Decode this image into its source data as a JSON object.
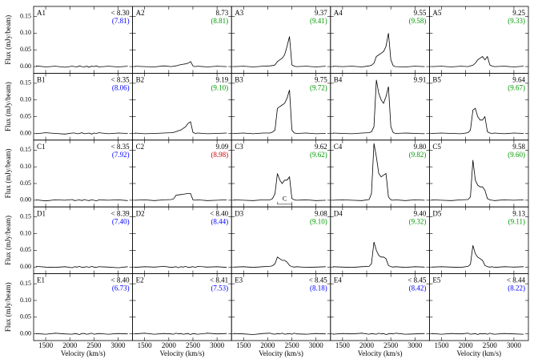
{
  "chart_data": {
    "type": "line",
    "xlabel": "Velocity (km/s)",
    "ylabel": "Flux (mJy/beam)",
    "x": [
      1300,
      1500,
      1700,
      1900,
      2050,
      2100,
      2150,
      2200,
      2250,
      2300,
      2350,
      2400,
      2450,
      2500,
      2550,
      2600,
      2800,
      3000,
      3200
    ],
    "xlim": [
      1250,
      3300
    ],
    "xticks": [
      1500,
      2000,
      2500,
      3000
    ],
    "ylim": [
      -0.02,
      0.18
    ],
    "yticks": [
      {
        "value": 0,
        "label": "0.00"
      },
      {
        "value": 0.05,
        "label": "0.05"
      },
      {
        "value": 0.1,
        "label": "0.10"
      },
      {
        "value": 0.15,
        "label": "0.15"
      }
    ],
    "color": "#000000",
    "panels": [
      {
        "title": "A1",
        "label": "< 8.30",
        "sub_label": "(7.81)",
        "sub_color": "#0000ff",
        "values": [
          0.002,
          -0.001,
          0.001,
          -0.002,
          0.001,
          0,
          -0.001,
          0.002,
          0,
          -0.001,
          0.001,
          -0.002,
          0.001,
          0,
          0.002,
          -0.001,
          0.001,
          -0.001,
          0.001
        ]
      },
      {
        "title": "A2",
        "label": "8.73",
        "sub_label": "(8.81)",
        "sub_color": "#009900",
        "values": [
          0.001,
          0,
          -0.001,
          0.002,
          0,
          0.001,
          0.002,
          0.004,
          0.006,
          0.007,
          0.008,
          0.01,
          0.015,
          0.002,
          0,
          0.001,
          -0.001,
          0.001,
          0
        ]
      },
      {
        "title": "A3",
        "label": "9.37",
        "sub_label": "(9.41)",
        "sub_color": "#009900",
        "values": [
          0,
          0.001,
          -0.001,
          0.001,
          0.002,
          0.003,
          0.005,
          0.015,
          0.02,
          0.025,
          0.035,
          0.06,
          0.09,
          0.005,
          0.001,
          0,
          0.001,
          -0.001,
          0.001
        ]
      },
      {
        "title": "A4",
        "label": "9.55",
        "sub_label": "(9.58)",
        "sub_color": "#009900",
        "values": [
          0.001,
          0,
          0.001,
          -0.001,
          0.002,
          0.004,
          0.01,
          0.03,
          0.035,
          0.04,
          0.045,
          0.06,
          0.1,
          0.02,
          0.002,
          0,
          -0.001,
          0.001,
          0
        ]
      },
      {
        "title": "A5",
        "label": "9.25",
        "sub_label": "(9.33)",
        "sub_color": "#009900",
        "values": [
          0,
          0.001,
          -0.001,
          0.001,
          0,
          0.002,
          0.004,
          0.01,
          0.02,
          0.025,
          0.03,
          0.02,
          0.03,
          0.005,
          0.001,
          0,
          0.001,
          -0.001,
          0.001
        ]
      },
      {
        "title": "B1",
        "label": "< 8.35",
        "sub_label": "(8.06)",
        "sub_color": "#0000ff",
        "values": [
          -0.001,
          0.002,
          0,
          -0.002,
          0.001,
          0.001,
          -0.001,
          0,
          0.002,
          -0.001,
          0,
          0.001,
          -0.002,
          0.001,
          0,
          0.002,
          -0.001,
          0.001,
          0
        ]
      },
      {
        "title": "B2",
        "label": "9.19",
        "sub_label": "(9.10)",
        "sub_color": "#009900",
        "values": [
          0.001,
          -0.001,
          0,
          0.001,
          0.002,
          0.003,
          0.005,
          0.008,
          0.01,
          0.015,
          0.02,
          0.03,
          0.035,
          0.003,
          0,
          0.001,
          -0.001,
          0,
          0.001
        ]
      },
      {
        "title": "B3",
        "label": "9.75",
        "sub_label": "(9.72)",
        "sub_color": "#009900",
        "values": [
          0,
          0.001,
          -0.001,
          0.001,
          0.001,
          0.004,
          0.01,
          0.075,
          0.08,
          0.085,
          0.09,
          0.105,
          0.13,
          0.01,
          0.001,
          0,
          0.001,
          -0.001,
          0
        ]
      },
      {
        "title": "B4",
        "label": "9.91",
        "values": [
          0.001,
          0,
          -0.001,
          0.001,
          0.002,
          0.005,
          0.02,
          0.16,
          0.12,
          0.1,
          0.09,
          0.11,
          0.14,
          0.02,
          0.002,
          0,
          0.001,
          0,
          -0.001
        ]
      },
      {
        "title": "B5",
        "label": "9.64",
        "sub_label": "(9.67)",
        "sub_color": "#009900",
        "values": [
          0,
          0.001,
          0,
          -0.001,
          0.002,
          0.01,
          0.07,
          0.075,
          0.05,
          0.04,
          0.04,
          0.05,
          0.005,
          0.001,
          0,
          0.001,
          -0.001,
          0.001,
          0
        ]
      },
      {
        "title": "C1",
        "label": "< 8.35",
        "sub_label": "(7.92)",
        "sub_color": "#0000ff",
        "values": [
          0.001,
          -0.002,
          0.001,
          0,
          0.002,
          -0.001,
          0,
          0.001,
          -0.001,
          0.002,
          0,
          -0.001,
          0.001,
          0,
          -0.002,
          0.001,
          0,
          0.001,
          -0.001
        ]
      },
      {
        "title": "C2",
        "label": "9.09",
        "sub_label": "(8.98)",
        "sub_color": "#cc0000",
        "values": [
          0,
          0.001,
          -0.001,
          0.001,
          0.002,
          0.004,
          0.015,
          0.016,
          0.017,
          0.018,
          0.019,
          0.02,
          0.02,
          0.001,
          0,
          0.001,
          -0.001,
          0,
          0.001
        ]
      },
      {
        "title": "C3",
        "label": "9.62",
        "sub_label": "(9.62)",
        "sub_color": "#009900",
        "bracket_label": "C",
        "values": [
          0.001,
          0,
          -0.001,
          0.001,
          0.001,
          0.005,
          0.02,
          0.08,
          0.06,
          0.05,
          0.06,
          0.06,
          0.07,
          0.005,
          0.001,
          0,
          0.001,
          -0.001,
          0
        ]
      },
      {
        "title": "C4",
        "label": "9.80",
        "sub_label": "(9.82)",
        "sub_color": "#009900",
        "values": [
          0,
          0.001,
          0,
          -0.001,
          0.002,
          0.02,
          0.17,
          0.13,
          0.08,
          0.07,
          0.075,
          0.08,
          0.01,
          0.001,
          0,
          0.001,
          -0.001,
          0.001,
          0
        ]
      },
      {
        "title": "C5",
        "label": "9.58",
        "sub_label": "(9.60)",
        "sub_color": "#009900",
        "values": [
          0.001,
          0,
          -0.001,
          0.001,
          0.002,
          0.01,
          0.12,
          0.06,
          0.045,
          0.04,
          0.04,
          0.03,
          0.005,
          0.001,
          0,
          -0.001,
          0.001,
          0,
          0.001
        ]
      },
      {
        "title": "D1",
        "label": "< 8.39",
        "sub_label": "(7.40)",
        "sub_color": "#0000ff",
        "values": [
          0.002,
          0,
          -0.001,
          0.001,
          -0.002,
          0.001,
          0,
          0.002,
          -0.001,
          0,
          0.001,
          -0.001,
          0.002,
          0,
          -0.001,
          0.001,
          0,
          -0.002,
          0.001
        ]
      },
      {
        "title": "D2",
        "label": "< 8.40",
        "sub_label": "(8.44)",
        "sub_color": "#0000ff",
        "values": [
          -0.001,
          0.001,
          0,
          0.002,
          -0.001,
          0,
          0.001,
          -0.002,
          0.001,
          0,
          0.002,
          -0.001,
          0,
          0.001,
          -0.001,
          0.002,
          0,
          0.001,
          -0.001
        ]
      },
      {
        "title": "D3",
        "label": "9.08",
        "sub_label": "(9.10)",
        "sub_color": "#009900",
        "values": [
          0,
          0.001,
          -0.001,
          0.001,
          0.002,
          0.004,
          0.01,
          0.03,
          0.025,
          0.02,
          0.02,
          0.015,
          0.005,
          0.001,
          0,
          0.001,
          -0.001,
          0,
          0.001
        ]
      },
      {
        "title": "D4",
        "label": "9.40",
        "sub_label": "(9.32)",
        "sub_color": "#009900",
        "values": [
          0.001,
          0,
          -0.001,
          0.001,
          0.002,
          0.01,
          0.075,
          0.05,
          0.035,
          0.03,
          0.03,
          0.025,
          0.005,
          0.001,
          0,
          0.001,
          -0.001,
          0.001,
          0
        ]
      },
      {
        "title": "D5",
        "label": "9.13",
        "sub_label": "(9.11)",
        "sub_color": "#009900",
        "values": [
          0,
          0.001,
          0,
          -0.001,
          0.002,
          0.008,
          0.065,
          0.04,
          0.03,
          0.025,
          0.02,
          0.005,
          0.001,
          0,
          0.001,
          -0.001,
          0.001,
          0,
          0.001
        ]
      },
      {
        "title": "E1",
        "label": "< 8.40",
        "sub_label": "(6.73)",
        "sub_color": "#0000ff",
        "values": [
          0.001,
          -0.001,
          0.002,
          0,
          -0.001,
          0.001,
          0,
          -0.002,
          0.001,
          0.001,
          -0.001,
          0,
          0.002,
          -0.001,
          0,
          0.001,
          -0.001,
          0.001,
          0
        ]
      },
      {
        "title": "E2",
        "label": "< 8.41",
        "sub_label": "(7.53)",
        "sub_color": "#0000ff",
        "values": [
          0,
          0.002,
          -0.001,
          0.001,
          0,
          -0.001,
          0.002,
          0,
          0.001,
          -0.001,
          0,
          0.001,
          -0.002,
          0.001,
          0,
          -0.001,
          0.002,
          0,
          0.001
        ]
      },
      {
        "title": "E3",
        "label": "< 8.45",
        "sub_label": "(8.18)",
        "sub_color": "#0000ff",
        "values": [
          0.001,
          0,
          -0.002,
          0.001,
          0.002,
          0,
          -0.001,
          0.001,
          0,
          0.002,
          -0.001,
          0,
          0.001,
          -0.001,
          0.002,
          0,
          -0.001,
          0.001,
          0
        ]
      },
      {
        "title": "E4",
        "label": "< 8.45",
        "sub_label": "(8.42)",
        "sub_color": "#0000ff",
        "values": [
          -0.001,
          0.001,
          0,
          0.002,
          -0.001,
          0.001,
          0,
          -0.001,
          0.002,
          0,
          0.001,
          -0.002,
          0,
          0.001,
          0,
          0.002,
          -0.001,
          0,
          0.001
        ]
      },
      {
        "title": "E5",
        "label": "< 8.44",
        "sub_label": "(8.22)",
        "sub_color": "#0000ff",
        "values": [
          0.001,
          -0.001,
          0.001,
          0,
          0.002,
          -0.001,
          0,
          0.001,
          -0.002,
          0.001,
          0,
          0.001,
          -0.001,
          0.002,
          0,
          -0.001,
          0.001,
          0,
          -0.001
        ]
      }
    ]
  }
}
